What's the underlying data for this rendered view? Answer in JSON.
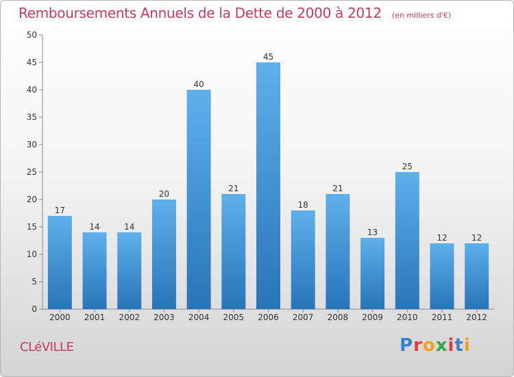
{
  "title": "Remboursements Annuels de la Dette de 2000 à 2012",
  "unit_note": "(en milliers d'€)",
  "city": "CLéVILLE",
  "brand": {
    "letters": [
      "P",
      "r",
      "o",
      "x",
      "i",
      "t",
      "i"
    ],
    "colors": [
      "#3a7fd0",
      "#e83a2e",
      "#f2a21a",
      "#2fa845",
      "#e83a2e",
      "#3a7fd0",
      "#f2a21a"
    ]
  },
  "colors": {
    "bar": "#3d8fd8",
    "title": "#c8385f"
  },
  "chart_data": {
    "type": "bar",
    "categories": [
      "2000",
      "2001",
      "2002",
      "2003",
      "2004",
      "2005",
      "2006",
      "2007",
      "2008",
      "2009",
      "2010",
      "2011",
      "2012"
    ],
    "values": [
      17,
      14,
      14,
      20,
      40,
      21,
      45,
      18,
      21,
      13,
      25,
      12,
      12
    ],
    "title": "Remboursements Annuels de la Dette de 2000 à 2012",
    "ylim": [
      0,
      50
    ],
    "yticks": [
      0,
      5,
      10,
      15,
      20,
      25,
      30,
      35,
      40,
      45,
      50
    ],
    "grid": false,
    "legend": "none"
  }
}
